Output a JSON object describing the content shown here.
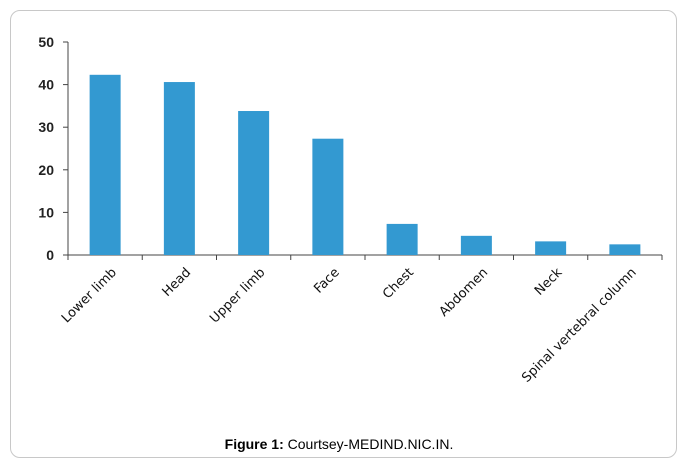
{
  "chart_data": {
    "type": "bar",
    "categories": [
      "Lower limb",
      "Head",
      "Upper limb",
      "Face",
      "Chest",
      "Abdomen",
      "Neck",
      "Spinal vertebral column"
    ],
    "values": [
      42.3,
      40.6,
      33.8,
      27.3,
      7.3,
      4.5,
      3.2,
      2.5
    ],
    "title": "",
    "xlabel": "",
    "ylabel": "",
    "ylim": [
      0,
      50
    ],
    "yticks": [
      0,
      10,
      20,
      30,
      40,
      50
    ],
    "grid": false,
    "bar_color": "#3399d1"
  },
  "caption": {
    "label": "Figure 1:",
    "text": " Courtsey-MEDIND.NIC.IN."
  }
}
